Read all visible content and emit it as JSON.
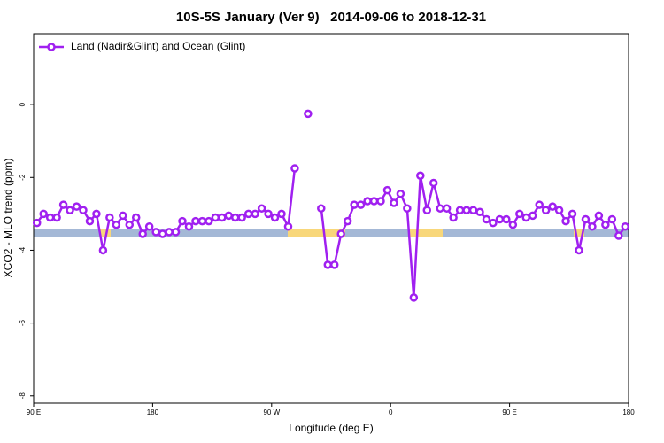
{
  "chart_data": {
    "type": "line",
    "title": "10S-5S January (Ver 9)   2014-09-06 to 2018-12-31",
    "xlabel": "Longitude (deg E)",
    "ylabel": "XCO2 - MLO trend (ppm)",
    "x": [
      92.5,
      97.5,
      102.5,
      107.5,
      112.5,
      117.5,
      122.5,
      127.5,
      132.5,
      137.5,
      142.5,
      147.5,
      152.5,
      157.5,
      162.5,
      167.5,
      172.5,
      177.5,
      182.5,
      187.5,
      192.5,
      197.5,
      202.5,
      207.5,
      212.5,
      217.5,
      222.5,
      227.5,
      232.5,
      237.5,
      242.5,
      247.5,
      252.5,
      257.5,
      262.5,
      267.5,
      272.5,
      277.5,
      282.5,
      287.5,
      292.5,
      297.5,
      302.5,
      307.5,
      312.5,
      317.5,
      322.5,
      327.5,
      332.5,
      337.5,
      342.5,
      347.5,
      352.5,
      357.5,
      362.5,
      367.5,
      372.5,
      377.5,
      382.5,
      387.5,
      392.5,
      397.5,
      402.5,
      407.5,
      412.5,
      417.5,
      422.5,
      427.5,
      432.5,
      437.5,
      442.5,
      447.5,
      452.5,
      457.5,
      462.5,
      467.5,
      472.5,
      477.5,
      482.5,
      487.5,
      492.5,
      497.5,
      502.5,
      507.5,
      512.5,
      517.5,
      522.5,
      527.5,
      532.5,
      537.5
    ],
    "series": [
      {
        "name": "Land (Nadir&Glint) and Ocean (Glint)",
        "color": "#a020f0",
        "values": [
          -3.25,
          -3.0,
          -3.1,
          -3.1,
          -2.75,
          -2.9,
          -2.8,
          -2.9,
          -3.2,
          -3.0,
          -4.0,
          -3.1,
          -3.3,
          -3.05,
          -3.3,
          -3.1,
          -3.55,
          -3.35,
          -3.5,
          -3.55,
          -3.5,
          -3.5,
          -3.2,
          -3.35,
          -3.2,
          -3.2,
          -3.2,
          -3.1,
          -3.1,
          -3.05,
          -3.1,
          -3.1,
          -3.0,
          -3.0,
          -2.85,
          -3.0,
          -3.1,
          -3.0,
          -3.35,
          -1.75,
          null,
          -0.25,
          null,
          -2.85,
          -4.4,
          -4.4,
          -3.55,
          -3.2,
          -2.75,
          -2.75,
          -2.65,
          -2.65,
          -2.65,
          -2.35,
          -2.7,
          -2.45,
          -2.85,
          -5.3,
          -1.95,
          -2.9,
          -2.15,
          -2.85,
          -2.85,
          -3.1,
          -2.9,
          -2.9,
          -2.9,
          -2.95,
          -3.15,
          -3.25,
          -3.15,
          -3.15,
          -3.3,
          -3.0,
          -3.1,
          -3.05,
          -2.75,
          -2.9,
          -2.8,
          -2.9,
          -3.2,
          -3.0,
          -4.0,
          -3.15,
          -3.35,
          -3.05,
          -3.3,
          -3.15,
          -3.6,
          -3.35
        ]
      }
    ],
    "xlim": [
      90,
      540
    ],
    "xticks": [
      {
        "value": 90,
        "label": "90 E"
      },
      180,
      {
        "value": 270,
        "label": "90 W"
      },
      {
        "value": 360,
        "label": "0"
      },
      {
        "value": 450,
        "label": "90 E"
      },
      {
        "value": 540,
        "label": "180"
      }
    ],
    "ylim": [
      -8.2,
      1.95
    ],
    "yticks": [
      0,
      -2,
      -4,
      -6,
      -8
    ],
    "legend": "top-left",
    "grid": false
  }
}
